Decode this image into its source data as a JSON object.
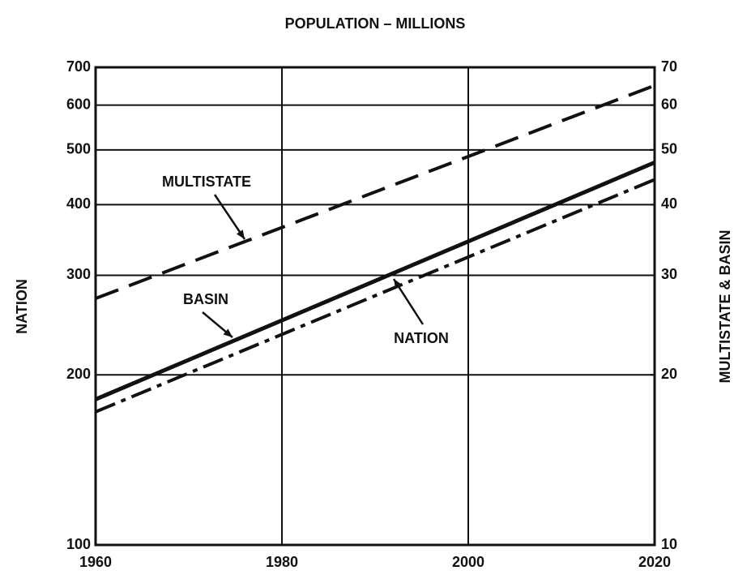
{
  "chart_data": {
    "type": "line",
    "title": "POPULATION – MILLIONS",
    "ylabel": "NATION",
    "y2label": "MULTISTATE & BASIN",
    "yscale": "log",
    "x": [
      1960,
      2020
    ],
    "xlim": [
      1960,
      2020
    ],
    "xticks": [
      1960,
      1980,
      2000,
      2020
    ],
    "ylim": [
      100,
      700
    ],
    "yticks": [
      100,
      200,
      300,
      400,
      500,
      600,
      700
    ],
    "y2lim": [
      10,
      70
    ],
    "y2ticks": [
      10,
      20,
      30,
      40,
      50,
      60,
      70
    ],
    "grid": true,
    "series": [
      {
        "name": "MULTISTATE",
        "color": "#111111",
        "axis": "y2",
        "values": [
          27.3,
          65
        ]
      },
      {
        "name": "BASIN",
        "color": "#111111",
        "axis": "y2",
        "values": [
          18.1,
          47.5
        ]
      },
      {
        "name": "NATION",
        "color": "#111111",
        "values": [
          172,
          443
        ]
      }
    ]
  }
}
